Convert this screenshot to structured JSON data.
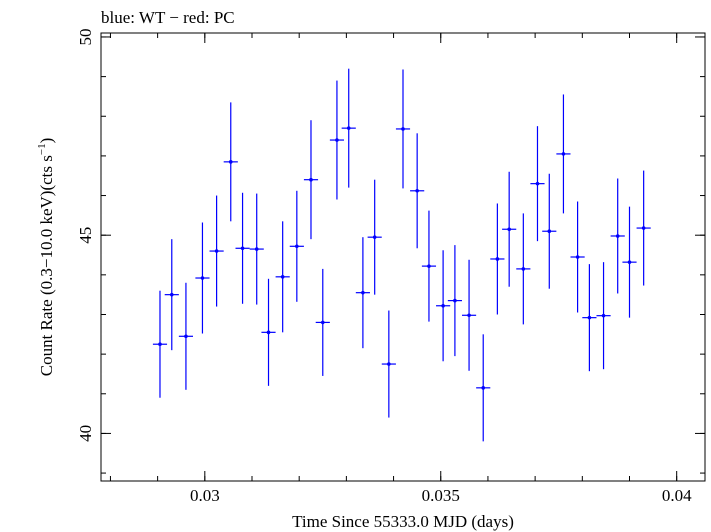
{
  "chart_data": {
    "type": "scatter",
    "title": "blue: WT − red: PC",
    "xlabel": "Time Since 55333.0 MJD (days)",
    "ylabel_main": "Count Rate (0.3−10.0 keV)(cts s",
    "ylabel_sup": "−1",
    "ylabel_end": ")",
    "xlim": [
      0.0278,
      0.0406
    ],
    "ylim": [
      38.8,
      50.1
    ],
    "xticks": [
      {
        "value": 0.03,
        "label": "0.03"
      },
      {
        "value": 0.035,
        "label": "0.035"
      },
      {
        "value": 0.04,
        "label": "0.04"
      }
    ],
    "xminor_step": 0.001,
    "yticks": [
      {
        "value": 40,
        "label": "40"
      },
      {
        "value": 45,
        "label": "45"
      },
      {
        "value": 50,
        "label": "50"
      }
    ],
    "yminor_step": 1,
    "grid": false,
    "series": [
      {
        "color": "#0000ff",
        "x_halfwidth": 0.00015,
        "points": [
          {
            "x": 0.02905,
            "y": 42.25,
            "yerr": 1.35
          },
          {
            "x": 0.0293,
            "y": 43.5,
            "yerr": 1.4
          },
          {
            "x": 0.0296,
            "y": 42.45,
            "yerr": 1.35
          },
          {
            "x": 0.02995,
            "y": 43.92,
            "yerr": 1.4
          },
          {
            "x": 0.03025,
            "y": 44.6,
            "yerr": 1.4
          },
          {
            "x": 0.03055,
            "y": 46.85,
            "yerr": 1.5
          },
          {
            "x": 0.0308,
            "y": 44.67,
            "yerr": 1.4
          },
          {
            "x": 0.0311,
            "y": 44.65,
            "yerr": 1.4
          },
          {
            "x": 0.03135,
            "y": 42.55,
            "yerr": 1.35
          },
          {
            "x": 0.03165,
            "y": 43.95,
            "yerr": 1.4
          },
          {
            "x": 0.03195,
            "y": 44.72,
            "yerr": 1.4
          },
          {
            "x": 0.03225,
            "y": 46.4,
            "yerr": 1.5
          },
          {
            "x": 0.0325,
            "y": 42.8,
            "yerr": 1.35
          },
          {
            "x": 0.0328,
            "y": 47.4,
            "yerr": 1.5
          },
          {
            "x": 0.03305,
            "y": 47.7,
            "yerr": 1.5
          },
          {
            "x": 0.03335,
            "y": 43.55,
            "yerr": 1.4
          },
          {
            "x": 0.0336,
            "y": 44.95,
            "yerr": 1.45
          },
          {
            "x": 0.0339,
            "y": 41.75,
            "yerr": 1.35
          },
          {
            "x": 0.0342,
            "y": 47.68,
            "yerr": 1.5
          },
          {
            "x": 0.0345,
            "y": 46.12,
            "yerr": 1.45
          },
          {
            "x": 0.03475,
            "y": 44.22,
            "yerr": 1.4
          },
          {
            "x": 0.03505,
            "y": 43.22,
            "yerr": 1.4
          },
          {
            "x": 0.0353,
            "y": 43.35,
            "yerr": 1.4
          },
          {
            "x": 0.0356,
            "y": 42.98,
            "yerr": 1.4
          },
          {
            "x": 0.0359,
            "y": 41.15,
            "yerr": 1.35
          },
          {
            "x": 0.0362,
            "y": 44.4,
            "yerr": 1.4
          },
          {
            "x": 0.03645,
            "y": 45.15,
            "yerr": 1.45
          },
          {
            "x": 0.03675,
            "y": 44.15,
            "yerr": 1.4
          },
          {
            "x": 0.03705,
            "y": 46.3,
            "yerr": 1.45
          },
          {
            "x": 0.0373,
            "y": 45.1,
            "yerr": 1.45
          },
          {
            "x": 0.0376,
            "y": 47.05,
            "yerr": 1.5
          },
          {
            "x": 0.0379,
            "y": 44.45,
            "yerr": 1.4
          },
          {
            "x": 0.03815,
            "y": 42.92,
            "yerr": 1.35
          },
          {
            "x": 0.03845,
            "y": 42.97,
            "yerr": 1.35
          },
          {
            "x": 0.03875,
            "y": 44.98,
            "yerr": 1.45
          },
          {
            "x": 0.039,
            "y": 44.32,
            "yerr": 1.4
          },
          {
            "x": 0.0393,
            "y": 45.18,
            "yerr": 1.45
          }
        ]
      }
    ]
  }
}
